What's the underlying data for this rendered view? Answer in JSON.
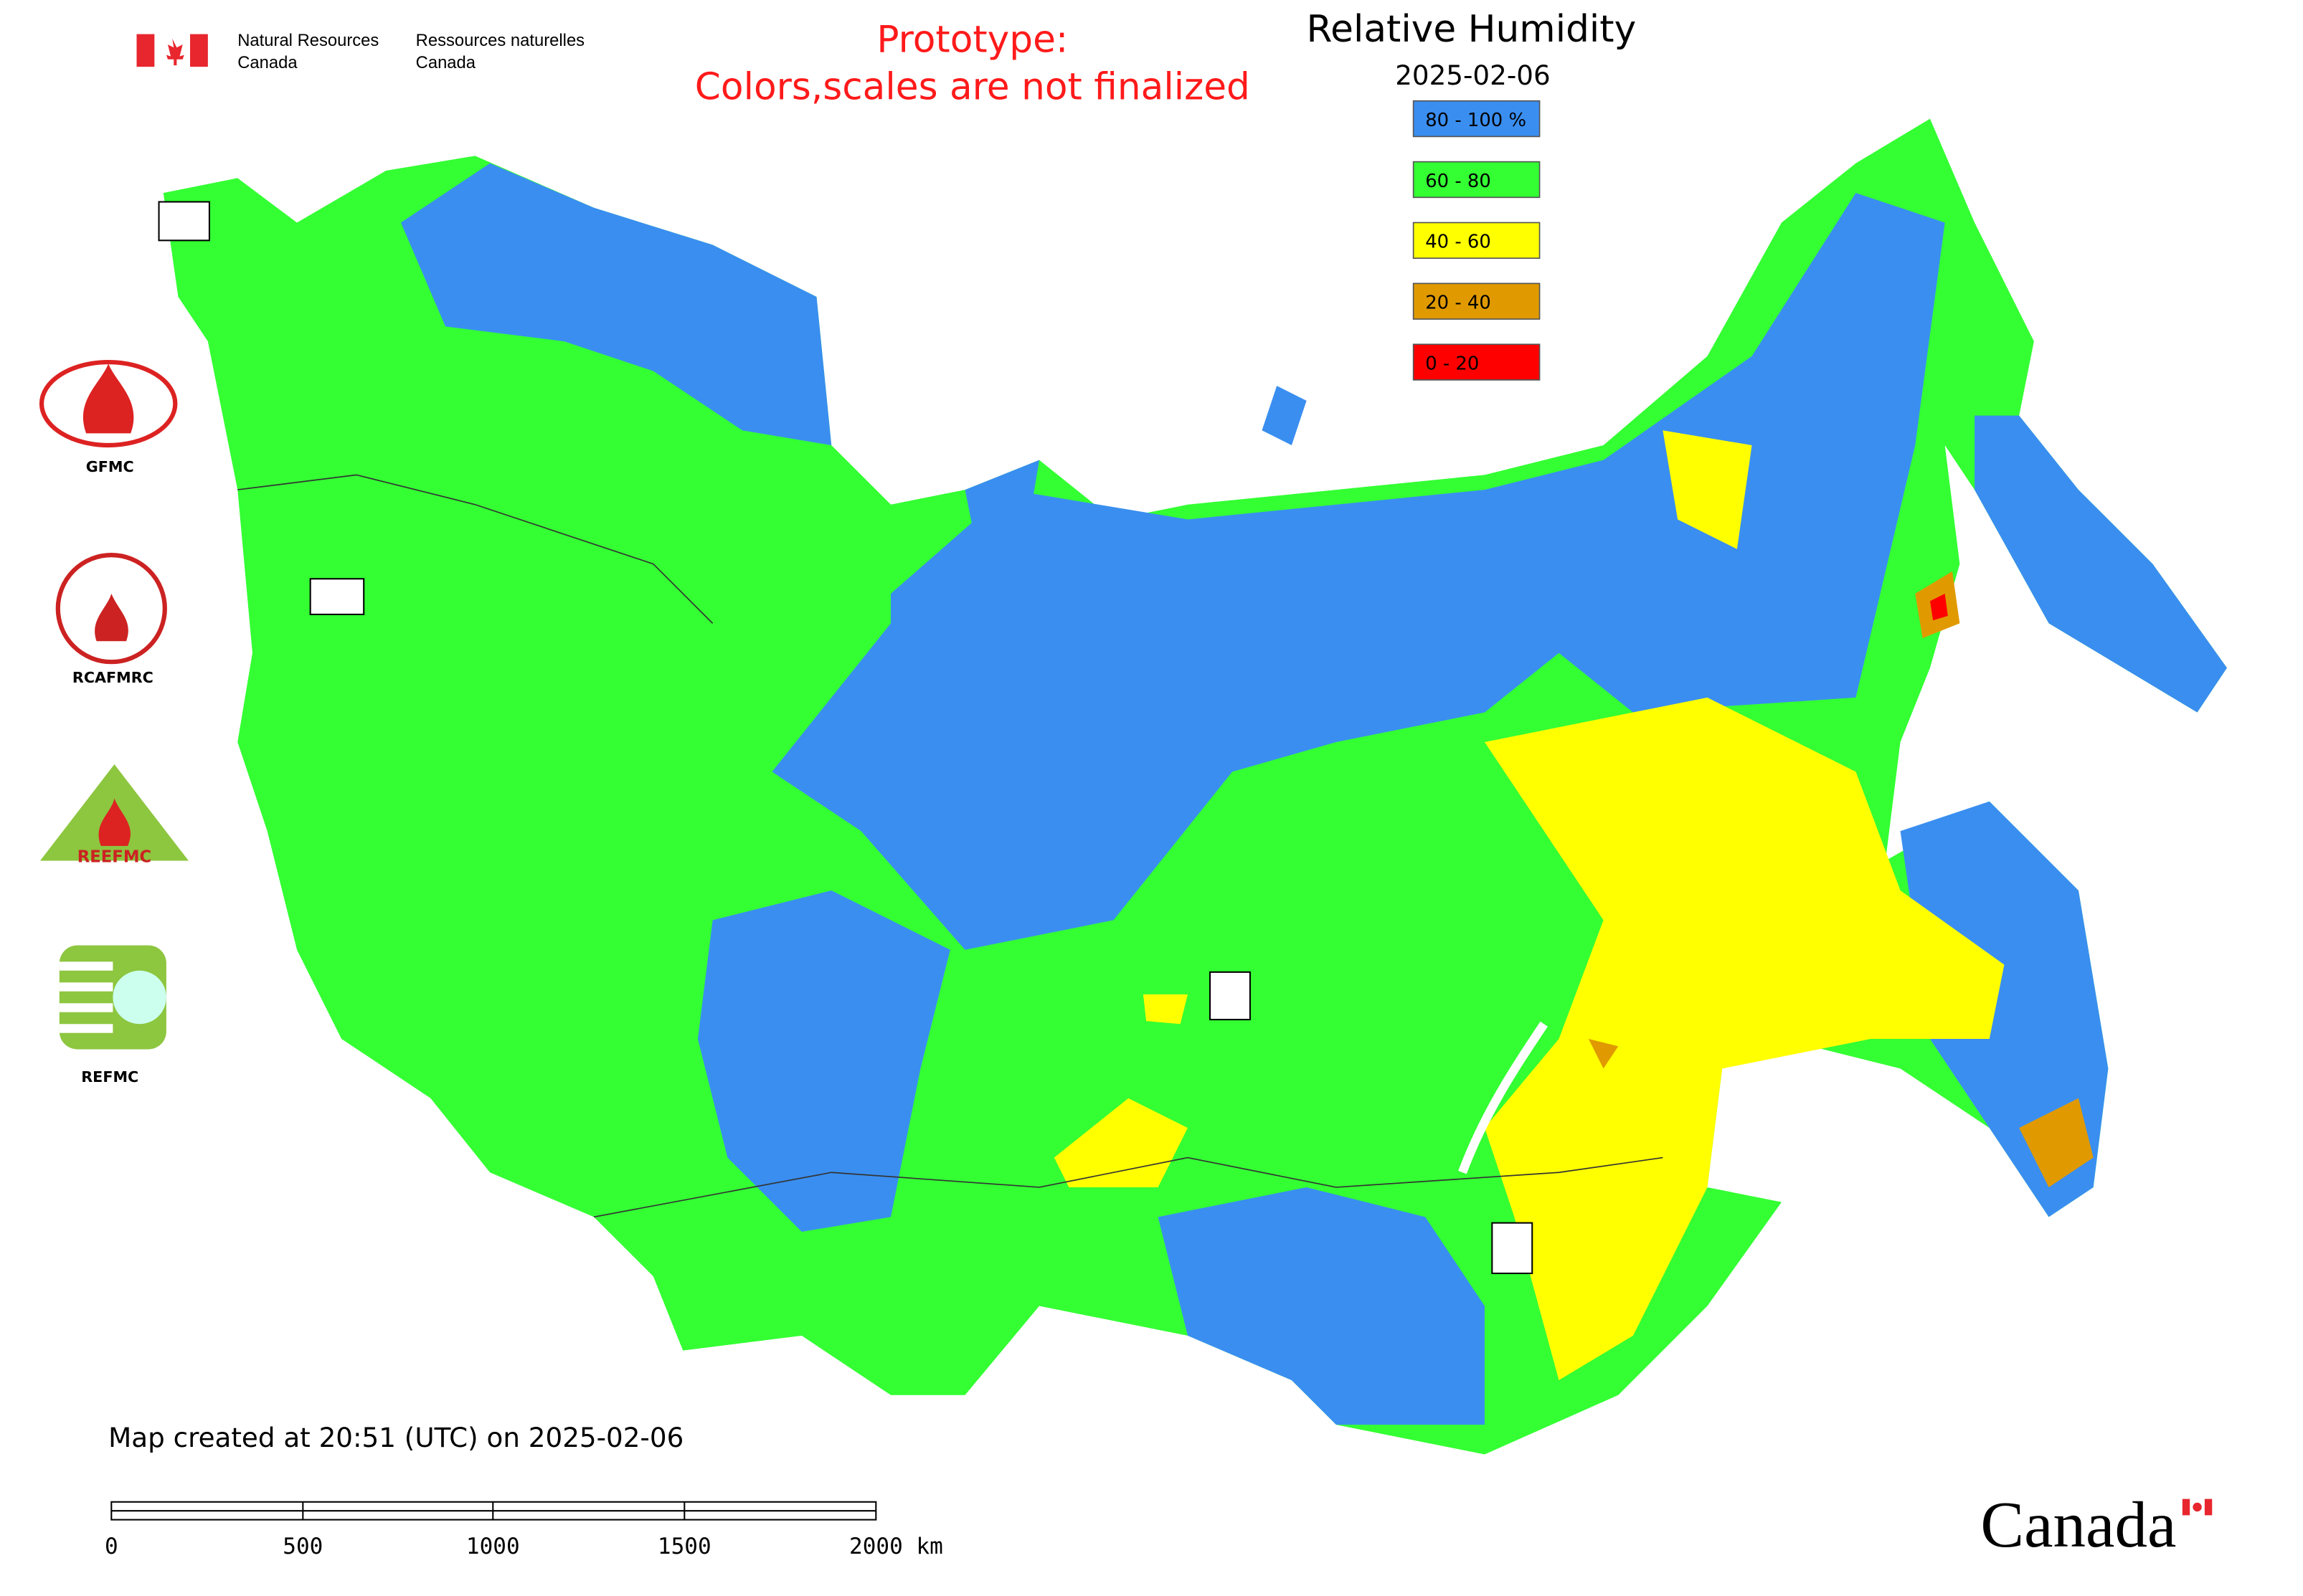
{
  "header": {
    "org_en": [
      "Natural Resources",
      "Canada"
    ],
    "org_fr": [
      "Ressources naturelles",
      "Canada"
    ]
  },
  "notice": [
    "Prototype:",
    "Colors,scales are not finalized"
  ],
  "title": "Relative Humidity",
  "date": "2025-02-06",
  "legend": [
    {
      "label": "80 - 100 %",
      "color": "#3a8ef0"
    },
    {
      "label": "60 - 80",
      "color": "#33ff33"
    },
    {
      "label": "40 - 60",
      "color": "#ffff00"
    },
    {
      "label": "20 - 40",
      "color": "#e09a00"
    },
    {
      "label": "0 - 20",
      "color": "#ff0000"
    }
  ],
  "side_logos": {
    "gfmc": "GFMC",
    "rcafmrc": "RCAFMRC",
    "reefmc": "REEFMC",
    "refmc": "REFMC"
  },
  "footer": {
    "created": "Map created at 20:51 (UTC) on 2025-02-06",
    "scale_labels": [
      "0",
      "500",
      "1000",
      "1500",
      "2000 km"
    ],
    "wordmark": "Canada"
  }
}
